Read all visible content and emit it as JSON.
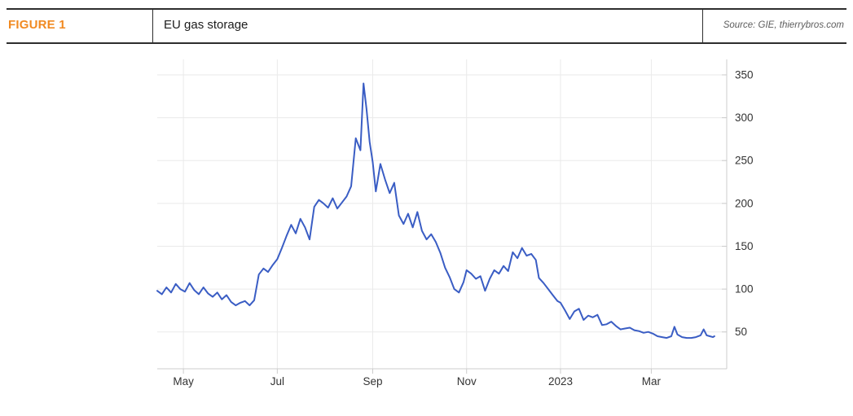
{
  "figure": {
    "label": "FIGURE 1",
    "title": "EU gas storage",
    "source": "Source: GIE, thierrybros.com"
  },
  "colors": {
    "accent_orange": "#F18A21",
    "line_blue": "#3A5DC4",
    "grid": "#EAEAEA",
    "axis": "#CCCCCC",
    "tick_label": "#333333",
    "header_rule": "#2E2E2E"
  },
  "chart_data": {
    "type": "line",
    "title": "EU gas storage",
    "xlabel": "",
    "ylabel": "",
    "legend": "none",
    "grid": "on",
    "y_axis_side": "right",
    "x_unit": "days since 2022-04-14",
    "y_ticks": [
      50,
      100,
      150,
      200,
      250,
      300,
      350
    ],
    "ylim": [
      7,
      368
    ],
    "xlim_days": [
      0,
      370
    ],
    "x_ticks": [
      {
        "label": "May",
        "day": 17
      },
      {
        "label": "Jul",
        "day": 78
      },
      {
        "label": "Sep",
        "day": 140
      },
      {
        "label": "Nov",
        "day": 201
      },
      {
        "label": "2023",
        "day": 262
      },
      {
        "label": "Mar",
        "day": 321
      }
    ],
    "series": [
      {
        "name": "EU gas storage",
        "color": "#3A5DC4",
        "points": [
          [
            0,
            98
          ],
          [
            3,
            94
          ],
          [
            6,
            102
          ],
          [
            9,
            96
          ],
          [
            12,
            106
          ],
          [
            15,
            100
          ],
          [
            18,
            97
          ],
          [
            21,
            107
          ],
          [
            24,
            99
          ],
          [
            27,
            94
          ],
          [
            30,
            102
          ],
          [
            33,
            95
          ],
          [
            36,
            91
          ],
          [
            39,
            96
          ],
          [
            42,
            88
          ],
          [
            45,
            93
          ],
          [
            48,
            85
          ],
          [
            51,
            81
          ],
          [
            54,
            84
          ],
          [
            57,
            86
          ],
          [
            60,
            81
          ],
          [
            63,
            87
          ],
          [
            66,
            117
          ],
          [
            69,
            124
          ],
          [
            72,
            120
          ],
          [
            75,
            128
          ],
          [
            78,
            135
          ],
          [
            81,
            148
          ],
          [
            84,
            162
          ],
          [
            87,
            175
          ],
          [
            90,
            165
          ],
          [
            93,
            182
          ],
          [
            96,
            172
          ],
          [
            99,
            158
          ],
          [
            102,
            196
          ],
          [
            105,
            204
          ],
          [
            108,
            200
          ],
          [
            111,
            195
          ],
          [
            114,
            206
          ],
          [
            117,
            194
          ],
          [
            120,
            201
          ],
          [
            123,
            208
          ],
          [
            126,
            220
          ],
          [
            129,
            276
          ],
          [
            132,
            262
          ],
          [
            134,
            340
          ],
          [
            136,
            310
          ],
          [
            138,
            272
          ],
          [
            140,
            248
          ],
          [
            142,
            214
          ],
          [
            145,
            246
          ],
          [
            148,
            228
          ],
          [
            151,
            212
          ],
          [
            154,
            224
          ],
          [
            157,
            186
          ],
          [
            160,
            176
          ],
          [
            163,
            188
          ],
          [
            166,
            172
          ],
          [
            169,
            190
          ],
          [
            172,
            168
          ],
          [
            175,
            158
          ],
          [
            178,
            164
          ],
          [
            181,
            155
          ],
          [
            184,
            142
          ],
          [
            187,
            125
          ],
          [
            190,
            114
          ],
          [
            193,
            100
          ],
          [
            196,
            96
          ],
          [
            199,
            108
          ],
          [
            201,
            122
          ],
          [
            204,
            118
          ],
          [
            207,
            112
          ],
          [
            210,
            115
          ],
          [
            213,
            98
          ],
          [
            216,
            112
          ],
          [
            219,
            122
          ],
          [
            222,
            118
          ],
          [
            225,
            127
          ],
          [
            228,
            121
          ],
          [
            231,
            143
          ],
          [
            234,
            136
          ],
          [
            237,
            148
          ],
          [
            240,
            139
          ],
          [
            243,
            141
          ],
          [
            246,
            134
          ],
          [
            248,
            113
          ],
          [
            251,
            107
          ],
          [
            254,
            100
          ],
          [
            257,
            93
          ],
          [
            260,
            86
          ],
          [
            262,
            84
          ],
          [
            265,
            75
          ],
          [
            268,
            65
          ],
          [
            271,
            74
          ],
          [
            274,
            77
          ],
          [
            277,
            64
          ],
          [
            280,
            69
          ],
          [
            283,
            67
          ],
          [
            286,
            70
          ],
          [
            289,
            58
          ],
          [
            292,
            59
          ],
          [
            295,
            62
          ],
          [
            298,
            57
          ],
          [
            301,
            53
          ],
          [
            304,
            54
          ],
          [
            307,
            55
          ],
          [
            310,
            52
          ],
          [
            313,
            51
          ],
          [
            316,
            49
          ],
          [
            319,
            50
          ],
          [
            322,
            48
          ],
          [
            325,
            45
          ],
          [
            328,
            44
          ],
          [
            331,
            43
          ],
          [
            334,
            45
          ],
          [
            336,
            56
          ],
          [
            338,
            47
          ],
          [
            341,
            44
          ],
          [
            344,
            43
          ],
          [
            347,
            43
          ],
          [
            350,
            44
          ],
          [
            353,
            46
          ],
          [
            355,
            53
          ],
          [
            357,
            46
          ],
          [
            359,
            45
          ],
          [
            361,
            44
          ],
          [
            362,
            45
          ]
        ]
      }
    ]
  }
}
